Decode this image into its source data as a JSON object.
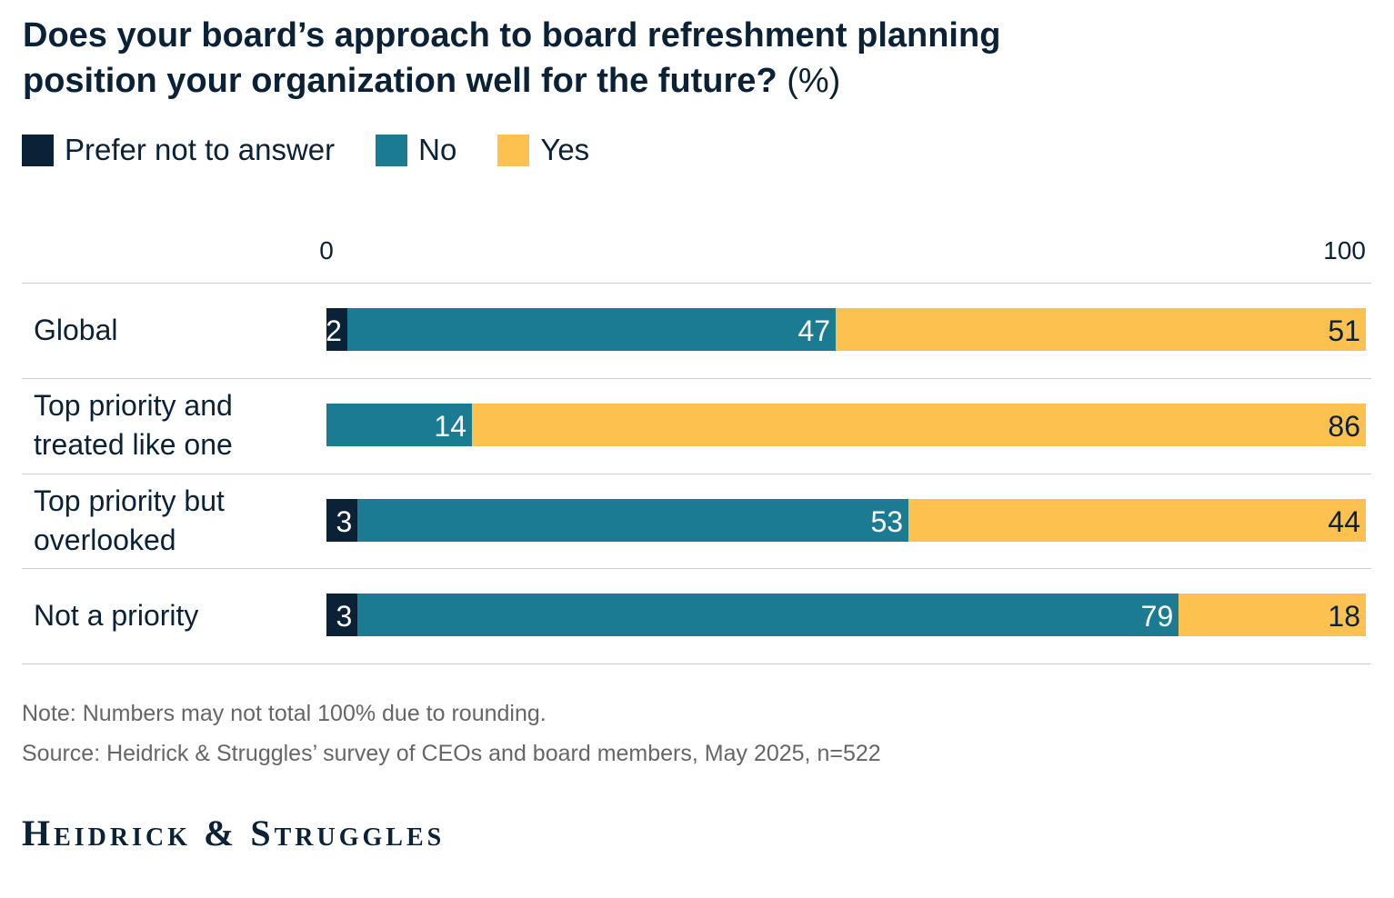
{
  "chart_data": {
    "type": "stacked-bar-horizontal",
    "title": "Does your board’s approach to board refreshment planning position your organization well for the future?",
    "title_suffix": "(%)",
    "categories": [
      "Global",
      "Top priority and treated like one",
      "Top priority but overlooked",
      "Not a priority"
    ],
    "series": [
      {
        "name": "Prefer not to answer",
        "color": "#0b2136",
        "values": [
          2,
          null,
          3,
          3
        ]
      },
      {
        "name": "No",
        "color": "#1b7b93",
        "values": [
          47,
          14,
          53,
          79
        ]
      },
      {
        "name": "Yes",
        "color": "#fdc150",
        "values": [
          51,
          86,
          44,
          18
        ]
      }
    ],
    "xlim": [
      0,
      100
    ],
    "xticks": [
      0,
      100
    ],
    "legend": "top-left",
    "note": "Note: Numbers may not total 100% due to rounding.",
    "source": "Source: Heidrick & Struggles’ survey of CEOs and board members, May 2025, n=522",
    "logo": "Heidrick & Struggles"
  }
}
